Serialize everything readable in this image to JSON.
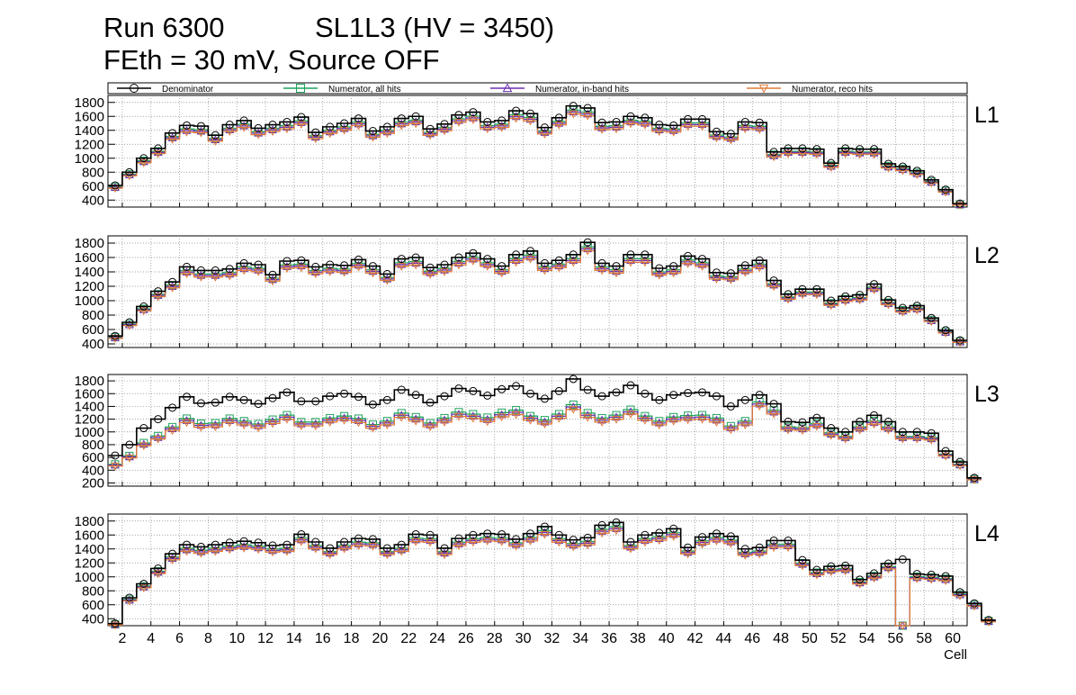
{
  "title": {
    "run": "Run 6300",
    "chamber": "SL1L3 (HV = 3450)",
    "conditions": "FEth = 30 mV, Source OFF"
  },
  "chart_data": {
    "type": "line",
    "style": "step histograms with markers, 4 stacked panels sharing x axis",
    "xlabel": "Cell",
    "xlim": [
      1,
      61
    ],
    "x_ticks": [
      2,
      4,
      6,
      8,
      10,
      12,
      14,
      16,
      18,
      20,
      22,
      24,
      26,
      28,
      30,
      32,
      34,
      36,
      38,
      40,
      42,
      44,
      46,
      48,
      50,
      52,
      54,
      56,
      58,
      60
    ],
    "x_tick_labels": [
      "2",
      "4",
      "6",
      "8",
      "10",
      "12",
      "14",
      "16",
      "18",
      "20",
      "22",
      "24",
      "26",
      "28",
      "30",
      "32",
      "34",
      "36",
      "38",
      "40",
      "42",
      "44",
      "46",
      "48",
      "50",
      "52",
      "54",
      "56",
      "58",
      "60"
    ],
    "grid": true,
    "legend_placement": "top, horizontal",
    "legend": [
      {
        "label": "Denominator",
        "color": "#000000",
        "marker": "circle"
      },
      {
        "label": "Numerator, all hits",
        "color": "#1fa35c",
        "marker": "square"
      },
      {
        "label": "Numerator, in-band hits",
        "color": "#6b2fb3",
        "marker": "triangle-up"
      },
      {
        "label": "Numerator, reco hits",
        "color": "#e07b39",
        "marker": "triangle-down"
      }
    ],
    "panels": [
      {
        "label": "L1",
        "ylim": [
          300,
          1900
        ],
        "y_ticks": [
          400,
          600,
          800,
          1000,
          1200,
          1400,
          1600,
          1800
        ],
        "y_tick_labels": [
          "400",
          "600",
          "800",
          "1000",
          "1200",
          "1400",
          "1600",
          "1800"
        ],
        "denominator": [
          610,
          800,
          1000,
          1140,
          1360,
          1470,
          1460,
          1330,
          1480,
          1540,
          1430,
          1480,
          1520,
          1590,
          1370,
          1450,
          1500,
          1570,
          1390,
          1450,
          1570,
          1600,
          1420,
          1490,
          1620,
          1660,
          1520,
          1540,
          1680,
          1640,
          1440,
          1580,
          1750,
          1720,
          1510,
          1520,
          1600,
          1580,
          1480,
          1470,
          1560,
          1560,
          1380,
          1350,
          1520,
          1510,
          1090,
          1140,
          1140,
          1130,
          930,
          1140,
          1130,
          1130,
          920,
          880,
          820,
          690,
          550,
          350
        ]
      },
      {
        "label": "L2",
        "ylim": [
          350,
          1900
        ],
        "y_ticks": [
          400,
          600,
          800,
          1000,
          1200,
          1400,
          1600,
          1800
        ],
        "y_tick_labels": [
          "400",
          "600",
          "800",
          "1000",
          "1200",
          "1400",
          "1600",
          "1800"
        ],
        "denominator": [
          510,
          700,
          920,
          1130,
          1260,
          1470,
          1420,
          1420,
          1440,
          1520,
          1500,
          1360,
          1550,
          1560,
          1470,
          1500,
          1490,
          1570,
          1480,
          1370,
          1580,
          1600,
          1460,
          1500,
          1600,
          1660,
          1580,
          1480,
          1640,
          1690,
          1520,
          1560,
          1640,
          1810,
          1520,
          1480,
          1640,
          1640,
          1450,
          1480,
          1620,
          1580,
          1390,
          1380,
          1490,
          1560,
          1280,
          1090,
          1160,
          1160,
          1000,
          1060,
          1080,
          1230,
          1010,
          900,
          930,
          760,
          590,
          450
        ]
      },
      {
        "label": "L3",
        "ylim": [
          150,
          1900
        ],
        "y_ticks": [
          200,
          400,
          600,
          800,
          1000,
          1200,
          1400,
          1600,
          1800
        ],
        "y_tick_labels": [
          "200",
          "400",
          "600",
          "800",
          "1000",
          "1200",
          "1400",
          "1600",
          "1800"
        ],
        "denominator": [
          630,
          800,
          1060,
          1200,
          1380,
          1550,
          1450,
          1460,
          1550,
          1500,
          1440,
          1530,
          1620,
          1480,
          1480,
          1560,
          1600,
          1550,
          1430,
          1500,
          1660,
          1580,
          1460,
          1560,
          1680,
          1640,
          1570,
          1670,
          1720,
          1600,
          1520,
          1640,
          1830,
          1660,
          1560,
          1620,
          1730,
          1600,
          1500,
          1580,
          1610,
          1620,
          1560,
          1400,
          1500,
          1580,
          1440,
          1160,
          1150,
          1220,
          1060,
          1000,
          1160,
          1260,
          1160,
          1000,
          1000,
          980,
          700,
          530,
          280
        ]
      },
      {
        "label": "L4",
        "ylim": [
          300,
          1900
        ],
        "y_ticks": [
          400,
          600,
          800,
          1000,
          1200,
          1400,
          1600,
          1800
        ],
        "y_tick_labels": [
          "400",
          "600",
          "800",
          "1000",
          "1200",
          "1400",
          "1600",
          "1800"
        ],
        "denominator": [
          330,
          700,
          900,
          1120,
          1330,
          1460,
          1430,
          1460,
          1490,
          1510,
          1490,
          1450,
          1460,
          1610,
          1500,
          1410,
          1500,
          1550,
          1540,
          1410,
          1460,
          1610,
          1600,
          1410,
          1550,
          1600,
          1620,
          1610,
          1540,
          1620,
          1720,
          1600,
          1530,
          1560,
          1740,
          1780,
          1500,
          1600,
          1630,
          1690,
          1420,
          1570,
          1620,
          1580,
          1400,
          1420,
          1520,
          1520,
          1240,
          1100,
          1150,
          1160,
          960,
          1050,
          1190,
          1250,
          1040,
          1030,
          1010,
          780,
          620,
          380
        ]
      }
    ]
  }
}
